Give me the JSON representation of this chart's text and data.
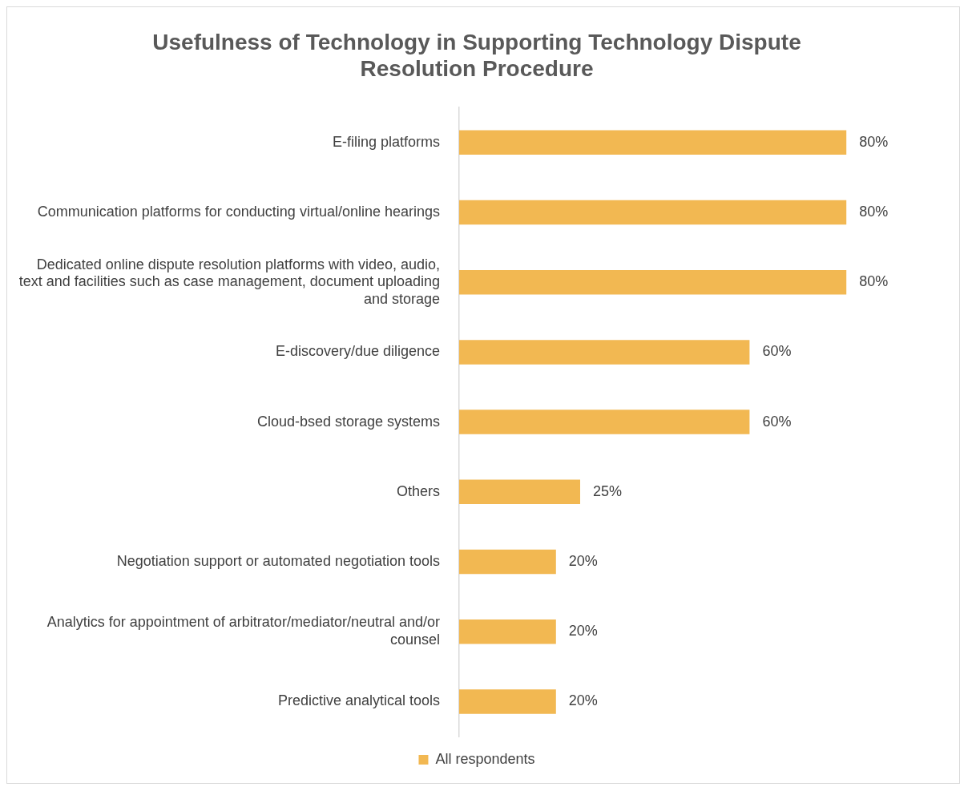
{
  "chart_data": {
    "type": "bar",
    "orientation": "horizontal",
    "title": "Usefulness of Technology in Supporting Technology Dispute Resolution Procedure",
    "categories": [
      "E-filing platforms",
      "Communication platforms for conducting virtual/online hearings",
      "Dedicated online dispute resolution platforms with video, audio, text and facilities such as case management, document uploading and storage",
      "E-discovery/due diligence",
      "Cloud-bsed storage systems",
      "Others",
      "Negotiation support or automated negotiation tools",
      "Analytics for appointment of arbitrator/mediator/neutral and/or counsel",
      "Predictive analytical tools"
    ],
    "series": [
      {
        "name": "All respondents",
        "color": "#f2b852",
        "values": [
          80,
          80,
          80,
          60,
          60,
          25,
          20,
          20,
          20
        ],
        "value_labels": [
          "80%",
          "80%",
          "80%",
          "60%",
          "60%",
          "25%",
          "20%",
          "20%",
          "20%"
        ]
      }
    ],
    "legend": "bottom",
    "grid": false
  }
}
